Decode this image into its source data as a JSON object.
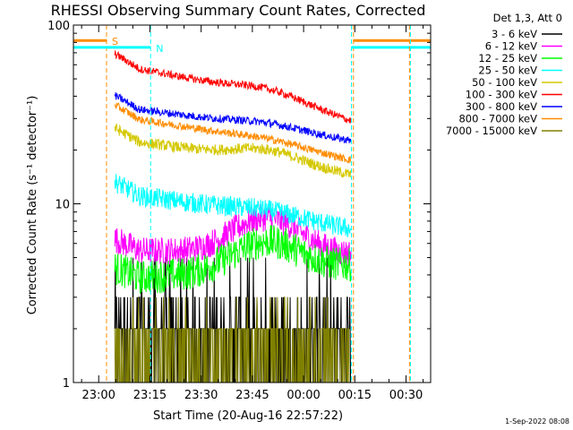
{
  "chart_data": {
    "type": "line",
    "title": "RHESSI Observing Summary Count Rates, Corrected",
    "xlabel": "Start Time (20-Aug-16 22:57:22)",
    "ylabel": "Corrected Count Rate (s⁻¹ detector⁻¹)",
    "ylog": true,
    "ylim": [
      1,
      100
    ],
    "yticks": [
      "1",
      "10",
      "100"
    ],
    "x_range_min": [
      -7.4,
      97.2
    ],
    "xticks": [
      {
        "label": "23:00",
        "min": 0
      },
      {
        "label": "23:15",
        "min": 15
      },
      {
        "label": "23:30",
        "min": 30
      },
      {
        "label": "23:45",
        "min": 45
      },
      {
        "label": "00:00",
        "min": 60
      },
      {
        "label": "00:15",
        "min": 75
      },
      {
        "label": "00:30",
        "min": 90
      }
    ],
    "legend_title": "Det 1,3, Att 0",
    "legend_position": "right",
    "data_window_min": [
      4.7,
      73.9
    ],
    "series": [
      {
        "name": "3 - 6 keV",
        "color": "#000000",
        "shape": "noisy",
        "start": 1.9,
        "end": 1.9,
        "peak": 2.0,
        "spread": 0.45
      },
      {
        "name": "6 - 12 keV",
        "color": "#ff00ff",
        "shape": "hump",
        "start": 5.5,
        "end": 5.2,
        "peak": 8.0,
        "spread": 0.18
      },
      {
        "name": "12 - 25 keV",
        "color": "#00ff00",
        "shape": "hump",
        "start": 3.8,
        "end": 4.5,
        "peak": 5.8,
        "spread": 0.22
      },
      {
        "name": "25 - 50 keV",
        "color": "#00ffff",
        "shape": "hump",
        "start": 11.5,
        "end": 7.2,
        "peak": 9.8,
        "spread": 0.13
      },
      {
        "name": "50 - 100 keV",
        "color": "#d4c800",
        "shape": "hump",
        "start": 23.0,
        "end": 14.5,
        "peak": 21.0,
        "spread": 0.07
      },
      {
        "name": "100 - 300 keV",
        "color": "#ff0000",
        "shape": "hump",
        "start": 60.0,
        "end": 29.0,
        "peak": 48.0,
        "spread": 0.05
      },
      {
        "name": "300 - 800 keV",
        "color": "#0000ff",
        "shape": "hump",
        "start": 35.0,
        "end": 22.5,
        "peak": 30.0,
        "spread": 0.05
      },
      {
        "name": "800 - 7000 keV",
        "color": "#ff8c00",
        "shape": "hump",
        "start": 31.0,
        "end": 17.5,
        "peak": 25.0,
        "spread": 0.05
      },
      {
        "name": "7000 - 15000 keV",
        "color": "#808000",
        "shape": "noisy",
        "start": 1.5,
        "end": 1.5,
        "peak": 1.5,
        "spread": 0.35
      }
    ],
    "annotations": [
      {
        "label": "S",
        "color": "#ff8c00",
        "vline_min": 2.3,
        "bar_from_min": -7.4,
        "bar_to_min": 2.3,
        "bar_y": 82
      },
      {
        "label": "N",
        "color": "#00ffff",
        "vline_min": 15.2,
        "bar_from_min": -7.4,
        "bar_to_min": 15.2,
        "bar_y": 75
      }
    ],
    "end_markers": [
      {
        "color": "#ff8c00",
        "vline_min": 74.6,
        "bar_from_min": 74.6,
        "bar_to_min": 97.2,
        "bar_y": 82
      },
      {
        "color": "#00ffff",
        "vline_min": 74.0,
        "bar_from_min": 74.0,
        "bar_to_min": 97.2,
        "bar_y": 75
      },
      {
        "color": "#ff8c00",
        "vline_min": 91.0,
        "bar_from_min": null,
        "bar_to_min": null,
        "bar_y": null
      },
      {
        "color": "#00ffff",
        "vline_min": 91.3,
        "bar_from_min": null,
        "bar_to_min": null,
        "bar_y": null
      }
    ],
    "grid": false
  },
  "timestamp": "1-Sep-2022 08:08"
}
